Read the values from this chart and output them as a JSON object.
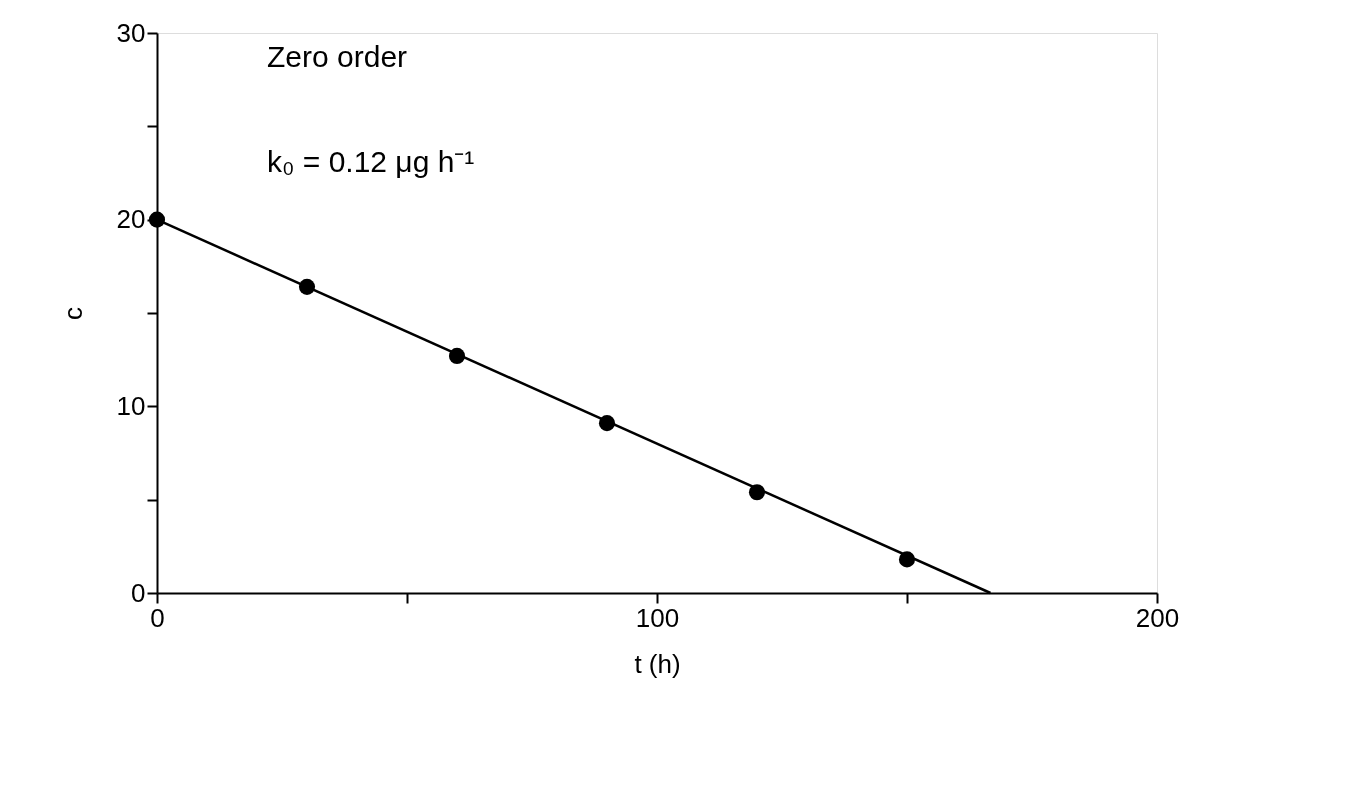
{
  "chart_data": {
    "type": "scatter",
    "xlabel": "t (h)",
    "ylabel": "c",
    "annotations": [
      "Zero order",
      "k₀ = 0.12 μg h⁻¹"
    ],
    "xlim": [
      0,
      200
    ],
    "xticks": [
      0,
      {
        "value": 50,
        "label": null
      },
      100,
      {
        "value": 150,
        "label": null
      },
      200
    ],
    "ylim": [
      0,
      30
    ],
    "yticks": [
      0,
      {
        "value": 5,
        "label": null
      },
      10,
      {
        "value": 15,
        "label": null
      },
      20,
      {
        "value": 25,
        "label": null
      },
      30
    ],
    "grid": false,
    "series": [
      {
        "type": "scatter",
        "color": "#000000",
        "marker": "circle",
        "x": [
          0,
          30,
          60,
          90,
          120,
          150
        ],
        "values": [
          20,
          16.4,
          12.7,
          9.1,
          5.4,
          1.8
        ]
      },
      {
        "type": "line",
        "color": "#000000",
        "line_style": "solid",
        "x": [
          0,
          166.7
        ],
        "values": [
          20,
          0
        ]
      }
    ]
  }
}
